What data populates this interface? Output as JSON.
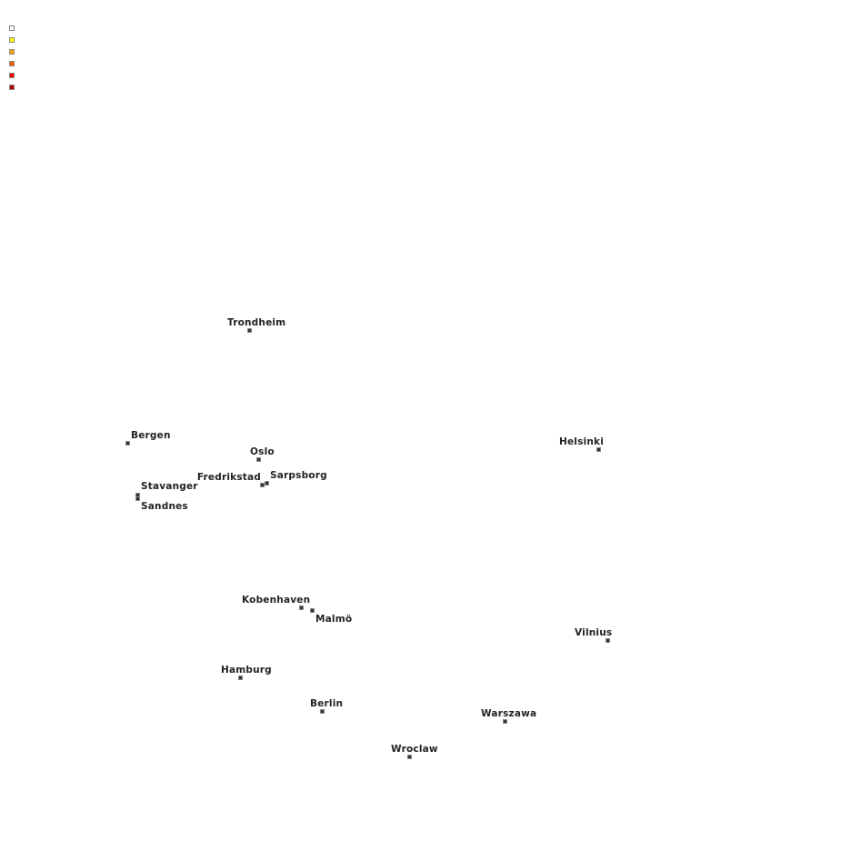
{
  "legend": {
    "swatches": [
      {
        "color": "#ffffff"
      },
      {
        "color": "#ffff00"
      },
      {
        "color": "#ffa500"
      },
      {
        "color": "#ff5a00"
      },
      {
        "color": "#ff0000"
      },
      {
        "color": "#b00000"
      }
    ]
  },
  "marker_color": "#333333",
  "cities": [
    {
      "name": "Trondheim"
    },
    {
      "name": "Bergen"
    },
    {
      "name": "Oslo"
    },
    {
      "name": "Fredrikstad"
    },
    {
      "name": "Sarpsborg"
    },
    {
      "name": "Stavanger"
    },
    {
      "name": "Sandnes"
    },
    {
      "name": "Helsinki"
    },
    {
      "name": "Kobenhaven"
    },
    {
      "name": "Malmö"
    },
    {
      "name": "Vilnius"
    },
    {
      "name": "Hamburg"
    },
    {
      "name": "Berlin"
    },
    {
      "name": "Warszawa"
    },
    {
      "name": "Wroclaw"
    }
  ]
}
